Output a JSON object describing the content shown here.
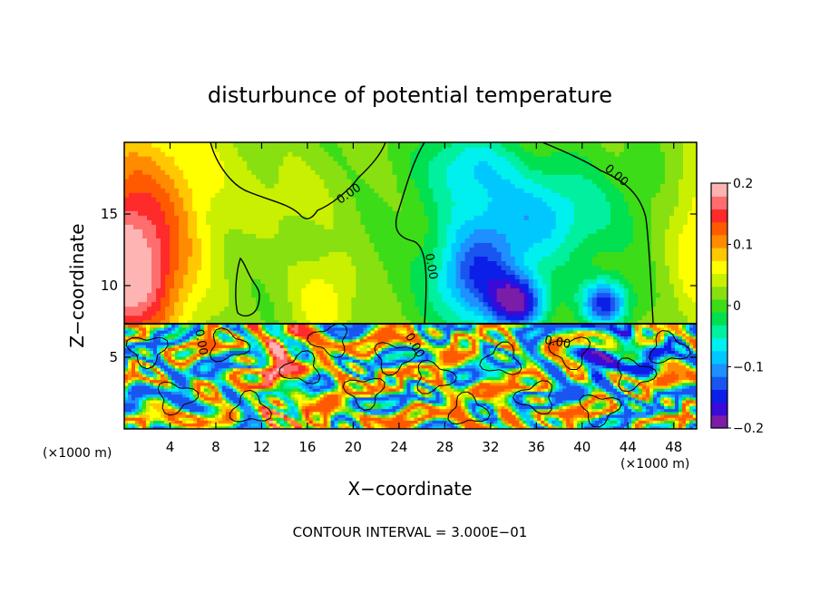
{
  "chart_data": {
    "type": "heatmap",
    "title": "disturbunce of potential temperature",
    "xlabel": "X−coordinate",
    "ylabel": "Z−coordinate",
    "x_unit_left": "(×1000 m)",
    "x_unit_right": "(×1000 m)",
    "footer": "CONTOUR INTERVAL = 3.000E−01",
    "xlim": [
      0,
      50
    ],
    "ylim": [
      0,
      20
    ],
    "x_ticks": [
      4,
      8,
      12,
      16,
      20,
      24,
      28,
      32,
      36,
      40,
      44,
      48
    ],
    "x_tick_labels": [
      "4",
      "8",
      "12",
      "16",
      "20",
      "24",
      "28",
      "32",
      "36",
      "40",
      "44",
      "48"
    ],
    "y_ticks": [
      5,
      10,
      15
    ],
    "y_tick_labels": [
      "5",
      "10",
      "15"
    ],
    "interface_height": 7.3,
    "colorbar": {
      "min": -0.2,
      "max": 0.2,
      "tick_values": [
        0.2,
        0.1,
        0,
        -0.1,
        -0.2
      ],
      "tick_labels": [
        "0.2",
        "0.1",
        "0",
        "−0.1",
        "−0.2"
      ],
      "colors": [
        "#7a1ea8",
        "#3a0ad8",
        "#0c1fe8",
        "#1a55f0",
        "#1e90ff",
        "#00c8ff",
        "#00f0f0",
        "#00f0a0",
        "#00e050",
        "#3cdc18",
        "#88e010",
        "#c8f000",
        "#ffff00",
        "#ffc800",
        "#ff8c00",
        "#ff5a00",
        "#ff2a2a",
        "#ff6e6e",
        "#ffb4b4"
      ]
    },
    "contour_labels": [
      {
        "text": "0.00",
        "x": 19.8,
        "y": 16.2,
        "angle": -35
      },
      {
        "text": "0.00",
        "x": 42.8,
        "y": 17.5,
        "angle": 40
      },
      {
        "text": "0.00",
        "x": 26.5,
        "y": 11.3,
        "angle": 80
      },
      {
        "text": "0.00",
        "x": 37.8,
        "y": 5.8,
        "angle": 10
      },
      {
        "text": "0.00",
        "x": 6.4,
        "y": 6.0,
        "angle": 80
      },
      {
        "text": "0.00",
        "x": 25.1,
        "y": 5.7,
        "angle": 60
      }
    ]
  }
}
